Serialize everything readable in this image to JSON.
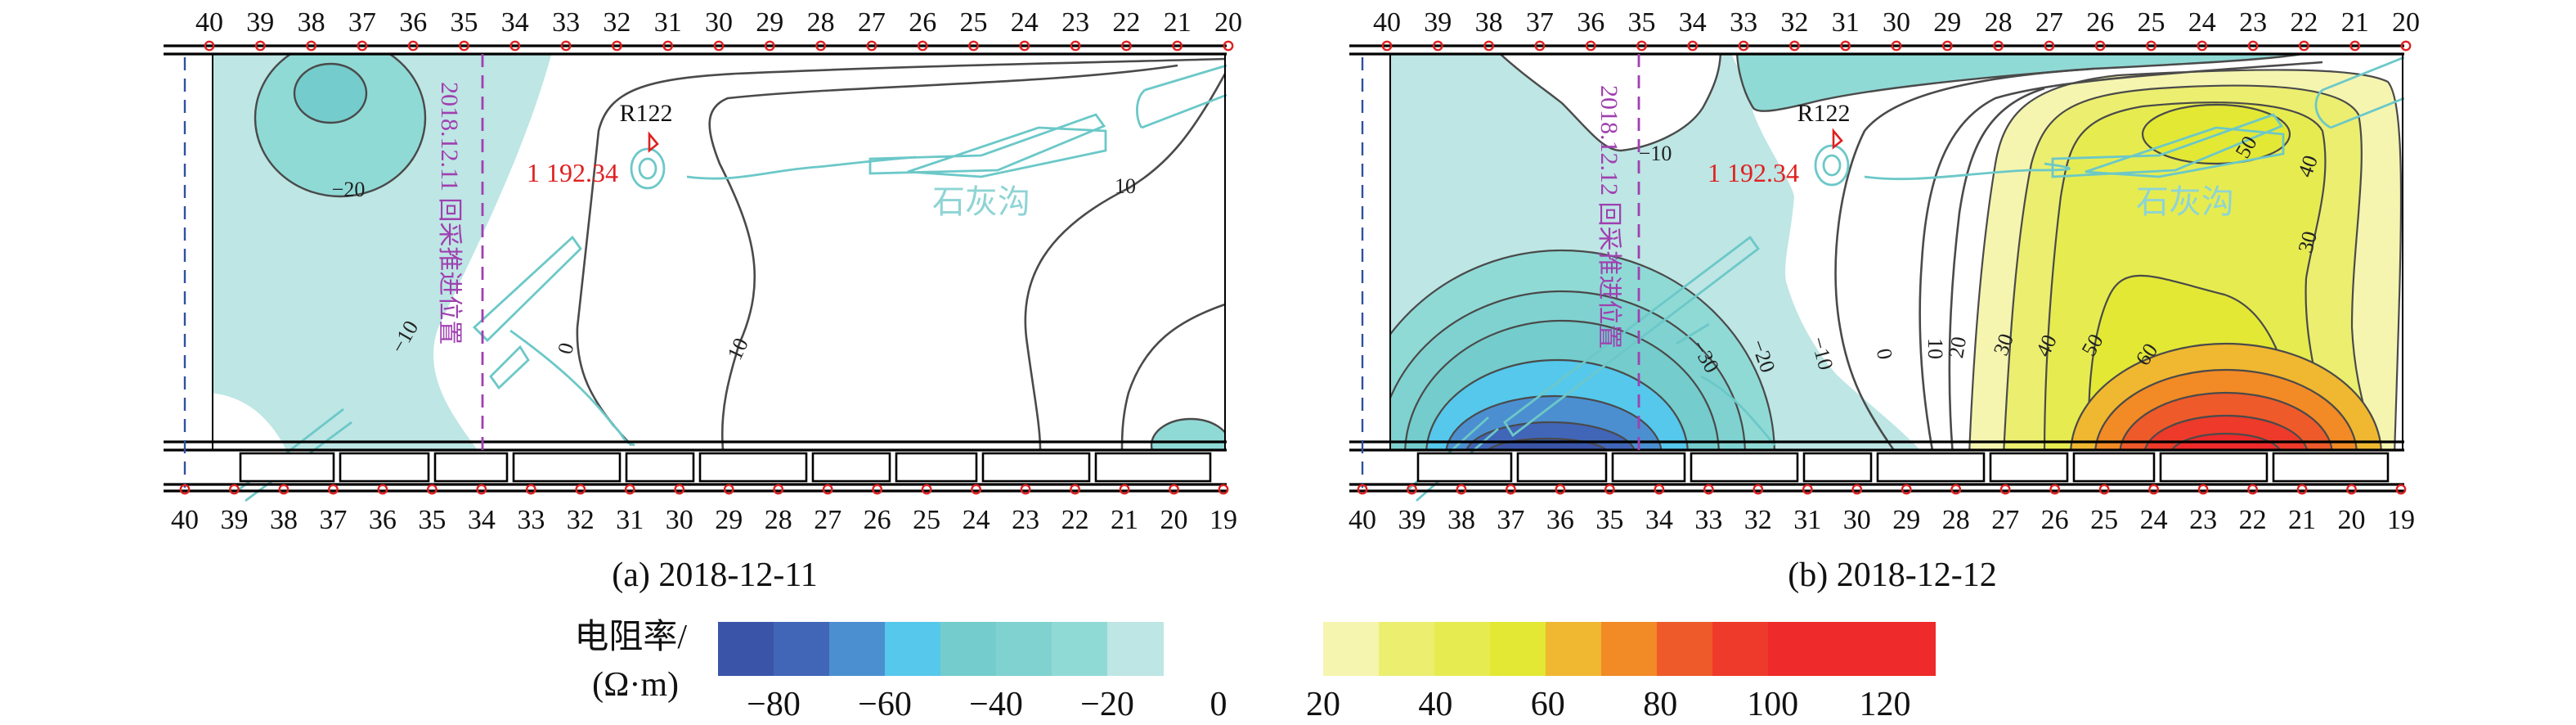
{
  "chart_data": [
    {
      "type": "heatmap",
      "subtype": "contour",
      "title": "(a) 2018-12-11",
      "x_top_ticks": [
        "40",
        "39",
        "38",
        "37",
        "36",
        "35",
        "34",
        "33",
        "32",
        "31",
        "30",
        "29",
        "28",
        "27",
        "26",
        "25",
        "24",
        "23",
        "22",
        "21",
        "20"
      ],
      "x_bottom_ticks": [
        "40",
        "39",
        "38",
        "37",
        "36",
        "35",
        "34",
        "33",
        "32",
        "31",
        "30",
        "29",
        "28",
        "27",
        "26",
        "25",
        "24",
        "23",
        "22",
        "21",
        "20",
        "19"
      ],
      "contour_labels": [
        "−20",
        "−10",
        "0",
        "10",
        "10"
      ],
      "contour_levels": [
        -20,
        -10,
        0,
        10
      ],
      "annotations": {
        "point": "R122",
        "elevation": "1 192.34",
        "feature": "石灰沟",
        "advance_line": "2018.12.11 回采推进位置"
      }
    },
    {
      "type": "heatmap",
      "subtype": "contour",
      "title": "(b) 2018-12-12",
      "x_top_ticks": [
        "40",
        "39",
        "38",
        "37",
        "36",
        "35",
        "34",
        "33",
        "32",
        "31",
        "30",
        "29",
        "28",
        "27",
        "26",
        "25",
        "24",
        "23",
        "22",
        "21",
        "20"
      ],
      "x_bottom_ticks": [
        "40",
        "39",
        "38",
        "37",
        "36",
        "35",
        "34",
        "33",
        "32",
        "31",
        "30",
        "29",
        "28",
        "27",
        "26",
        "25",
        "24",
        "23",
        "22",
        "21",
        "20",
        "19"
      ],
      "contour_labels": [
        "−10",
        "50",
        "40",
        "30",
        "−30",
        "−20",
        "−10",
        "0",
        "10",
        "20",
        "30",
        "40",
        "50",
        "60"
      ],
      "contour_levels": [
        -80,
        -70,
        -60,
        -50,
        -40,
        -30,
        -20,
        -10,
        0,
        10,
        20,
        30,
        40,
        50,
        60,
        70,
        80,
        90,
        100
      ],
      "annotations": {
        "point": "R122",
        "elevation": "1 192.34",
        "feature": "石灰沟",
        "advance_line": "2018.12.12 回采推进位置"
      }
    }
  ],
  "colorbar": {
    "label_line1": "电阻率/",
    "label_line2": "(Ω·m)",
    "neg_ticks": [
      "−80",
      "−60",
      "−40",
      "−20",
      "0"
    ],
    "pos_ticks": [
      "20",
      "40",
      "60",
      "80",
      "100",
      "120"
    ],
    "neg_colors": [
      "#3a55a8",
      "#4166b8",
      "#4b8fd0",
      "#55c8ec",
      "#74cccc",
      "#7fd2d0",
      "#90dad6",
      "#bde6e4"
    ],
    "pos_colors": [
      "#f5f5b0",
      "#ecee70",
      "#e6ec50",
      "#e3e835",
      "#f0b830",
      "#f28a25",
      "#ee5a2a",
      "#ee3a2a",
      "#ee2a2a"
    ]
  },
  "colors": {
    "cyan_feature": "#6cc8c8",
    "advance_line": "#a040b0",
    "elevation_text": "#e02020",
    "boundary_dash": "#3050a0"
  }
}
